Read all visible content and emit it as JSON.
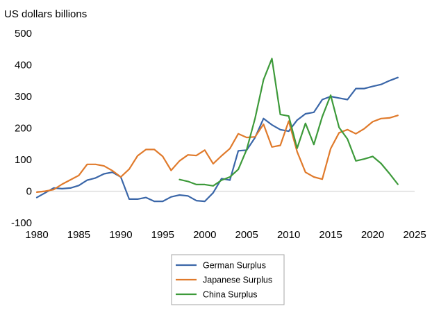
{
  "chart_data": {
    "type": "line",
    "title": "",
    "unit_label": "US dollars billions",
    "xlabel": "",
    "ylabel": "",
    "xlim": [
      1980,
      2025
    ],
    "ylim": [
      -100,
      500
    ],
    "x_ticks": [
      1980,
      1985,
      1990,
      1995,
      2000,
      2005,
      2010,
      2015,
      2020,
      2025
    ],
    "y_ticks": [
      -100,
      0,
      100,
      200,
      300,
      400,
      500
    ],
    "grid": false,
    "zero_line": true,
    "legend_position": "bottom-center",
    "series": [
      {
        "name": "German Surplus",
        "color": "#3a66a8",
        "x": [
          1980,
          1981,
          1982,
          1983,
          1984,
          1985,
          1986,
          1987,
          1988,
          1989,
          1990,
          1991,
          1992,
          1993,
          1994,
          1995,
          1996,
          1997,
          1998,
          1999,
          2000,
          2001,
          2002,
          2003,
          2004,
          2005,
          2006,
          2007,
          2008,
          2009,
          2010,
          2011,
          2012,
          2013,
          2014,
          2015,
          2016,
          2017,
          2018,
          2019,
          2020,
          2021,
          2022,
          2023
        ],
        "y": [
          -20,
          -5,
          10,
          8,
          10,
          18,
          35,
          42,
          55,
          60,
          45,
          -25,
          -25,
          -20,
          -32,
          -32,
          -18,
          -12,
          -15,
          -30,
          -32,
          -5,
          40,
          35,
          128,
          130,
          170,
          230,
          210,
          195,
          190,
          225,
          245,
          250,
          290,
          300,
          295,
          290,
          325,
          325,
          332,
          338,
          350,
          360
        ]
      },
      {
        "name": "Japanese Surplus",
        "color": "#e07a2b",
        "x": [
          1980,
          1981,
          1982,
          1983,
          1984,
          1985,
          1986,
          1987,
          1988,
          1989,
          1990,
          1991,
          1992,
          1993,
          1994,
          1995,
          1996,
          1997,
          1998,
          1999,
          2000,
          2001,
          2002,
          2003,
          2004,
          2005,
          2006,
          2007,
          2008,
          2009,
          2010,
          2011,
          2012,
          2013,
          2014,
          2015,
          2016,
          2017,
          2018,
          2019,
          2020,
          2021,
          2022,
          2023
        ],
        "y": [
          -3,
          0,
          5,
          22,
          36,
          50,
          85,
          85,
          80,
          65,
          45,
          70,
          112,
          132,
          132,
          110,
          66,
          96,
          115,
          113,
          130,
          87,
          112,
          135,
          182,
          170,
          172,
          212,
          140,
          145,
          222,
          125,
          60,
          45,
          38,
          135,
          185,
          195,
          182,
          198,
          220,
          230,
          232,
          240
        ]
      },
      {
        "name": "China Surplus",
        "color": "#3d9a3a",
        "x": [
          1997,
          1998,
          1999,
          2000,
          2001,
          2002,
          2003,
          2004,
          2005,
          2006,
          2007,
          2008,
          2009,
          2010,
          2011,
          2012,
          2013,
          2014,
          2015,
          2016,
          2017,
          2018,
          2019,
          2020,
          2021,
          2022,
          2023
        ],
        "y": [
          37,
          31,
          21,
          21,
          17,
          35,
          45,
          69,
          132,
          231,
          353,
          420,
          243,
          238,
          136,
          215,
          148,
          236,
          304,
          202,
          165,
          96,
          102,
          110,
          88,
          56,
          22
        ]
      }
    ]
  }
}
